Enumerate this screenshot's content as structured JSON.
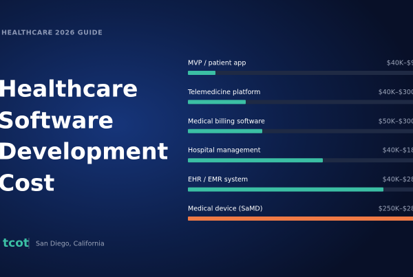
{
  "header": {
    "category": "HEALTHCARE",
    "edition": "2026 GUIDE",
    "title_lines": [
      "Healthcare",
      "Software",
      "Development",
      "Cost"
    ]
  },
  "items": [
    {
      "label": "MVP / patient app",
      "cost": "$40K–$9"
    },
    {
      "label": "Telemedicine platform",
      "cost": "$40K–$300"
    },
    {
      "label": "Medical billing software",
      "cost": "$50K–$300"
    },
    {
      "label": "Hospital management",
      "cost": "$40K–$18"
    },
    {
      "label": "EHR / EMR system",
      "cost": "$40K–$28"
    },
    {
      "label": "Medical device (SaMD)",
      "cost": "$250K–$28"
    }
  ],
  "footer": {
    "logo": "tcot",
    "location": "San Diego, California"
  }
}
